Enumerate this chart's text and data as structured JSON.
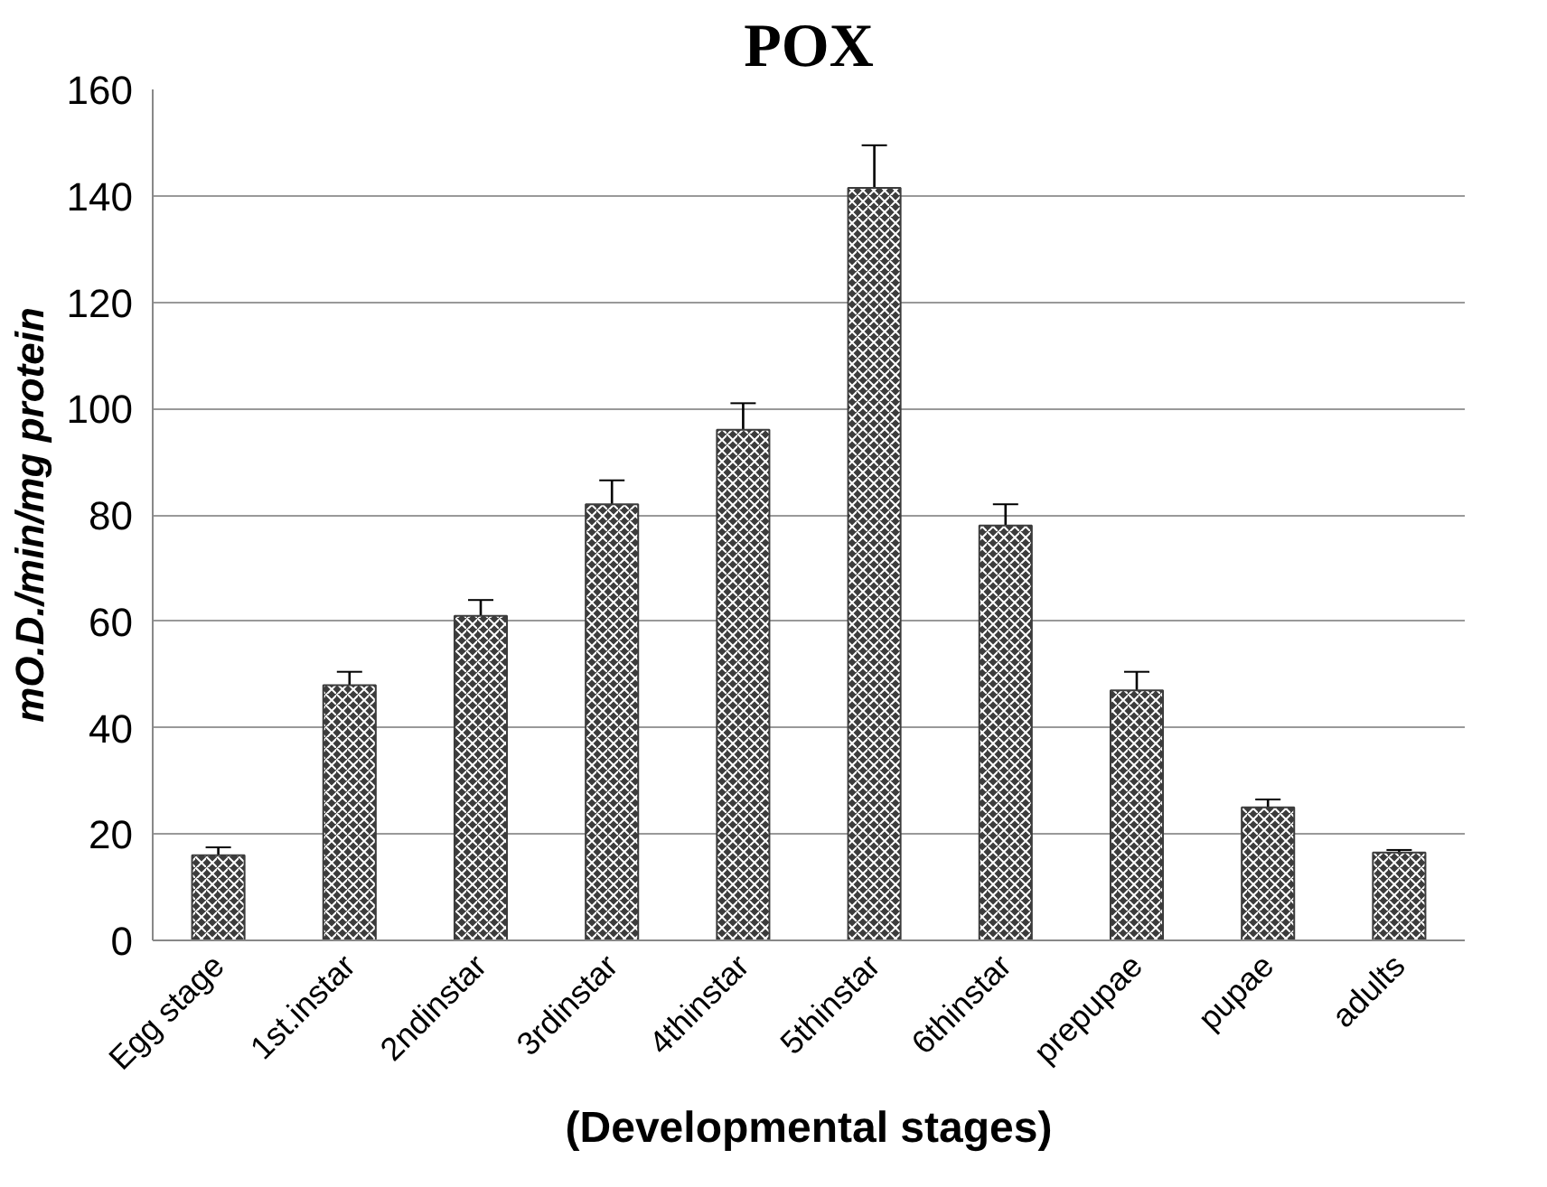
{
  "chart_data": {
    "type": "bar",
    "title": "POX",
    "xlabel": "(Developmental stages)",
    "ylabel": "mO.D./min/mg protein",
    "categories": [
      "Egg stage",
      "1st.instar",
      "2ndinstar",
      "3rdinstar",
      "4thinstar",
      "5thinstar",
      "6thinstar",
      "prepupae",
      "pupae",
      "adults"
    ],
    "values": [
      16,
      48,
      61,
      82,
      96,
      141.5,
      78,
      47,
      25,
      16.5
    ],
    "errors": [
      1.5,
      2.5,
      3,
      4.5,
      5,
      8,
      4,
      3.5,
      1.5,
      0.5
    ],
    "color": "#3c3c3c",
    "ylim": [
      0,
      160
    ],
    "yticks": [
      0,
      20,
      40,
      60,
      80,
      100,
      120,
      140,
      160
    ],
    "grid": "y"
  }
}
